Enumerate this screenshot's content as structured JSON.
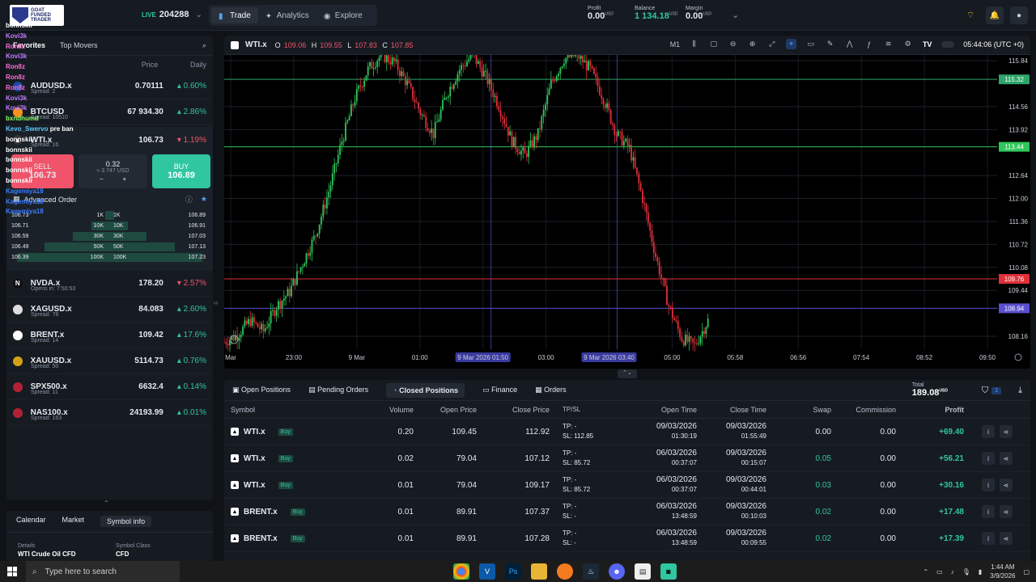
{
  "topbar": {
    "brand": "GOAT FUNDED TRADER",
    "live_tag": "LIVE",
    "account": "204288",
    "nav": [
      {
        "label": "Trade"
      },
      {
        "label": "Analytics"
      },
      {
        "label": "Explore"
      }
    ],
    "profit_label": "Profit",
    "profit_value": "0.00",
    "balance_label": "Balance",
    "balance_value": "1 134.18",
    "margin_label": "Margin",
    "margin_value": "0.00",
    "currency": "USD"
  },
  "watchlist": {
    "tabs": [
      "Favorites",
      "Top Movers"
    ],
    "price_header": "Price",
    "daily_header": "Daily",
    "top_items": [
      {
        "symbol": "AUDUSD.x",
        "spread": "Spread: 2",
        "price": "0.70111",
        "change": "0.60%",
        "dir": "up"
      },
      {
        "symbol": "BTCUSD",
        "spread": "Spread: 10510",
        "price": "67 934.30",
        "change": "2.86%",
        "dir": "up"
      }
    ],
    "selected": {
      "symbol": "WTI.x",
      "spread": "Spread: 16",
      "price": "106.73",
      "change": "1.19%",
      "dir": "down"
    },
    "items": [
      {
        "symbol": "NVDA.x",
        "spread": "Opens in: 7:50:53",
        "price": "178.20",
        "change": "2.57%",
        "dir": "down",
        "icon": "N"
      },
      {
        "symbol": "XAGUSD.x",
        "spread": "Spread: 78",
        "price": "84.083",
        "change": "2.60%",
        "dir": "up",
        "icon": ""
      },
      {
        "symbol": "BRENT.x",
        "spread": "Spread: 14",
        "price": "109.42",
        "change": "17.6%",
        "dir": "up",
        "icon": ""
      },
      {
        "symbol": "XAUUSD.x",
        "spread": "Spread: 50",
        "price": "5114.73",
        "change": "0.76%",
        "dir": "up",
        "icon": ""
      },
      {
        "symbol": "SPX500.x",
        "spread": "Spread: 11",
        "price": "6632.4",
        "change": "0.14%",
        "dir": "up",
        "icon": ""
      },
      {
        "symbol": "NAS100.x",
        "spread": "Spread: 163",
        "price": "24193.99",
        "change": "0.01%",
        "dir": "up",
        "icon": ""
      }
    ]
  },
  "ticket": {
    "sell_label": "SELL",
    "sell_price": "106.73",
    "qty": "0.32",
    "qty_usd": "≈ 3 747 USD",
    "minus": "−",
    "plus": "+",
    "buy_label": "BUY",
    "buy_price": "106.89",
    "advanced_label": "Advanced Order",
    "depth": [
      {
        "bid": "106.73",
        "bq": "1K",
        "aq": "1K",
        "ask": "106.89",
        "w": 0.05
      },
      {
        "bid": "106.71",
        "bq": "10K",
        "aq": "10K",
        "ask": "106.91",
        "w": 0.2
      },
      {
        "bid": "106.59",
        "bq": "30K",
        "aq": "30K",
        "ask": "107.03",
        "w": 0.4
      },
      {
        "bid": "106.49",
        "bq": "50K",
        "aq": "50K",
        "ask": "107.13",
        "w": 0.7
      },
      {
        "bid": "106.39",
        "bq": "100K",
        "aq": "100K",
        "ask": "107.23",
        "w": 1.0
      }
    ]
  },
  "chat": [
    {
      "name": "bonnskii",
      "msg": ""
    },
    {
      "name": "Kovi3k",
      "msg": ""
    },
    {
      "name": "Ron8z",
      "msg": ""
    },
    {
      "name": "Kovi3k",
      "msg": ""
    },
    {
      "name": "Ron8z",
      "msg": ""
    },
    {
      "name": "Ron8z",
      "msg": ""
    },
    {
      "name": "Ron8z",
      "msg": ""
    },
    {
      "name": "Kovi3k",
      "msg": ""
    },
    {
      "name": "Kovi3k",
      "msg": ""
    },
    {
      "name": "bxndhumd",
      "msg": ""
    },
    {
      "name": "Kevo_Swervo",
      "msg": "pre ban"
    },
    {
      "name": "bonnskii",
      "msg": ""
    },
    {
      "name": "bonnskii",
      "msg": ""
    },
    {
      "name": "bonnskii",
      "msg": ""
    },
    {
      "name": "bonnskii",
      "msg": ""
    },
    {
      "name": "bonnskii",
      "msg": ""
    },
    {
      "name": "Kagemiya18",
      "msg": ""
    },
    {
      "name": "Kagemiya18",
      "msg": ""
    },
    {
      "name": "Kagemiya18",
      "msg": ""
    }
  ],
  "leftbottom": {
    "tabs": [
      "Calendar",
      "Market",
      "Symbol info"
    ],
    "details_label": "Details",
    "details_value": "WTI Crude Oil CFD",
    "class_label": "Symbol Class",
    "class_value": "CFD"
  },
  "chart": {
    "symbol": "WTI.x",
    "o_label": "O",
    "o": "109.06",
    "h_label": "H",
    "h": "109.55",
    "l_label": "L",
    "l": "107.83",
    "c_label": "C",
    "c": "107.85",
    "timeframe": "M1",
    "clock": "05:44:06 (UTC +0)"
  },
  "chart_data": {
    "type": "candlestick",
    "y_ticks": [
      "115.84",
      "114.56",
      "113.92",
      "112.64",
      "112.00",
      "111.36",
      "110.72",
      "110.08",
      "109.44",
      "108.16"
    ],
    "ylim": [
      107.8,
      116.0
    ],
    "x_ticks": [
      "Mar",
      "23:00",
      "9 Mar",
      "01:00",
      "9 Mar 2026 01:50",
      "03:00",
      "9 Mar 2026 03:40",
      "05:00",
      "05:58",
      "06:56",
      "07:54",
      "08:52",
      "09:50"
    ],
    "price_lines": [
      {
        "value": "115.32",
        "color": "#2fa56a"
      },
      {
        "value": "113.44",
        "color": "#2fc65a"
      },
      {
        "value": "109.76",
        "color": "#e0303a"
      },
      {
        "value": "108.94",
        "color": "#5a4fd0"
      }
    ],
    "path": [
      108.0,
      108.2,
      108.6,
      108.3,
      109.0,
      109.4,
      110.2,
      111.0,
      112.2,
      113.6,
      114.8,
      115.6,
      116.0,
      115.8,
      115.2,
      114.4,
      113.8,
      114.9,
      115.6,
      116.0,
      115.4,
      114.6,
      113.6,
      113.2,
      113.8,
      115.2,
      115.9,
      116.0,
      115.6,
      114.8,
      113.8,
      113.4,
      112.0,
      110.4,
      109.0,
      108.1,
      107.9,
      108.6
    ]
  },
  "positions": {
    "tabs": [
      "Open Positions",
      "Pending Orders",
      "Closed Positions",
      "Finance",
      "Orders"
    ],
    "total_label": "Total",
    "total_value": "189.08",
    "filter_count": "1",
    "headers": [
      "Symbol",
      "Volume",
      "Open Price",
      "Close Price",
      "TP/SL",
      "Open Time",
      "Close Time",
      "Swap",
      "Commission",
      "Profit"
    ],
    "rows": [
      {
        "symbol": "WTI.x",
        "side": "Buy",
        "volume": "0.20",
        "open": "109.45",
        "close": "112.92",
        "tp": "TP: -",
        "sl": "SL: 112.85",
        "odate": "09/03/2026",
        "otime": "01:30:19",
        "cdate": "09/03/2026",
        "ctime": "01:55:49",
        "swap": "0.00",
        "comm": "0.00",
        "profit": "+69.40"
      },
      {
        "symbol": "WTI.x",
        "side": "Buy",
        "volume": "0.02",
        "open": "79.04",
        "close": "107.12",
        "tp": "TP: -",
        "sl": "SL: 85.72",
        "odate": "06/03/2026",
        "otime": "00:37:07",
        "cdate": "09/03/2026",
        "ctime": "00:15:07",
        "swap": "0.05",
        "comm": "0.00",
        "profit": "+56.21"
      },
      {
        "symbol": "WTI.x",
        "side": "Buy",
        "volume": "0.01",
        "open": "79.04",
        "close": "109.17",
        "tp": "TP: -",
        "sl": "SL: 85.72",
        "odate": "06/03/2026",
        "otime": "00:37:07",
        "cdate": "09/03/2026",
        "ctime": "00:44:01",
        "swap": "0.03",
        "comm": "0.00",
        "profit": "+30.16"
      },
      {
        "symbol": "BRENT.x",
        "side": "Buy",
        "volume": "0.01",
        "open": "89.91",
        "close": "107.37",
        "tp": "TP: -",
        "sl": "SL: -",
        "odate": "06/03/2026",
        "otime": "13:48:59",
        "cdate": "09/03/2026",
        "ctime": "00:10:03",
        "swap": "0.02",
        "comm": "0.00",
        "profit": "+17.48"
      },
      {
        "symbol": "BRENT.x",
        "side": "Buy",
        "volume": "0.01",
        "open": "89.91",
        "close": "107.28",
        "tp": "TP: -",
        "sl": "SL: -",
        "odate": "06/03/2026",
        "otime": "13:48:59",
        "cdate": "09/03/2026",
        "ctime": "00:09:55",
        "swap": "0.02",
        "comm": "0.00",
        "profit": "+17.39"
      }
    ]
  },
  "taskbar": {
    "search_placeholder": "Type here to search",
    "time": "1:44 AM",
    "date": "3/9/2026"
  }
}
